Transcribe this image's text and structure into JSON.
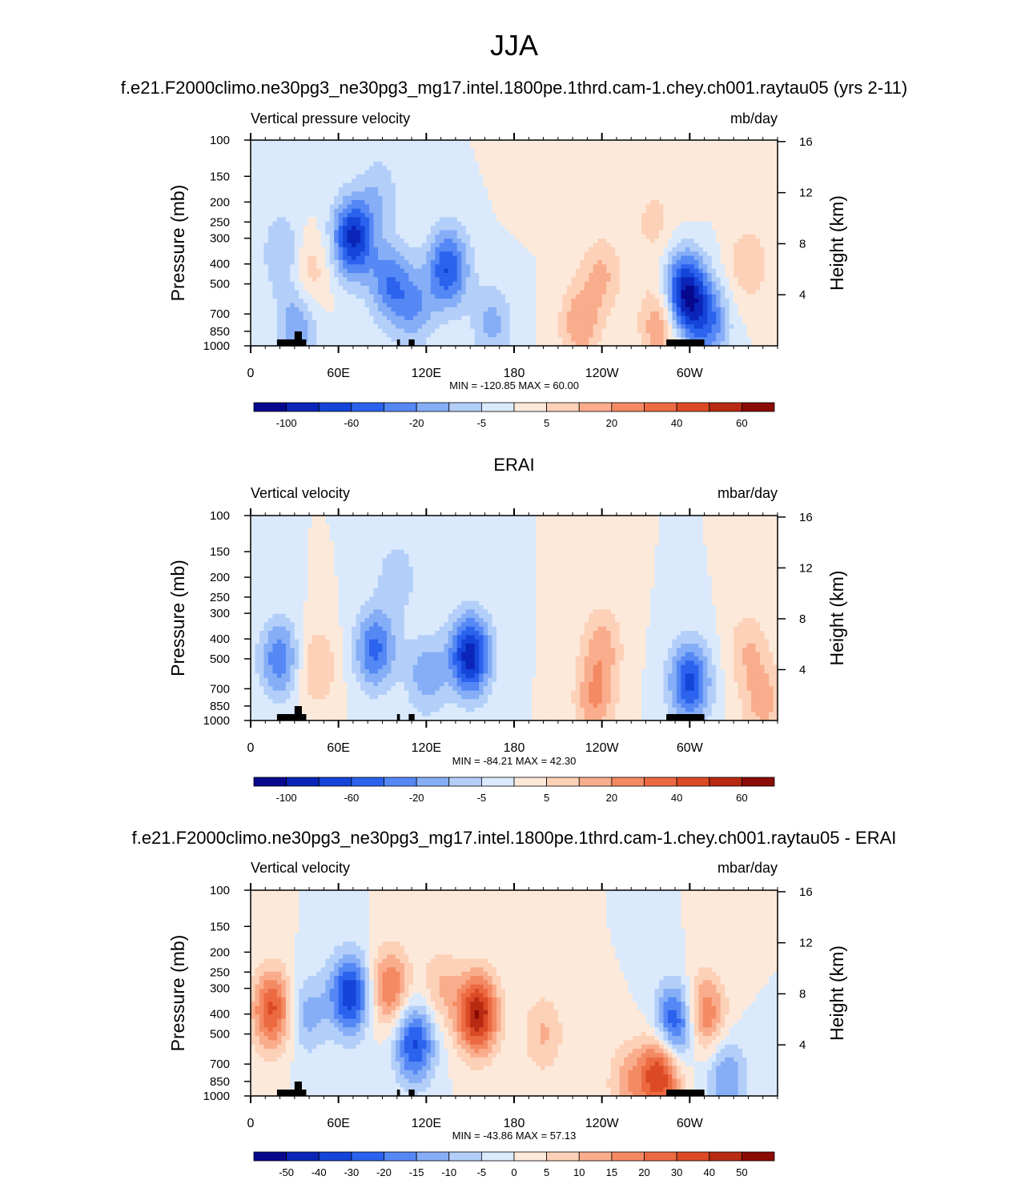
{
  "figure": {
    "title": "JJA"
  },
  "chart_data": [
    {
      "type": "heatmap",
      "panel_title": "f.e21.F2000climo.ne30pg3_ne30pg3_mg17.intel.1800pe.1thrd.cam-1.chey.ch001.raytau05 (yrs 2-11)",
      "left_label": "Vertical pressure velocity",
      "units": "mb/day",
      "xlabel": "",
      "ylabel": "Pressure (mb)",
      "y2label": "Height (km)",
      "x_ticks": [
        "0",
        "60E",
        "120E",
        "180",
        "120W",
        "60W"
      ],
      "y_ticks": [
        "100",
        "150",
        "200",
        "250",
        "300",
        "400",
        "500",
        "700",
        "850",
        "1000"
      ],
      "y2_ticks": [
        "16",
        "12",
        "8",
        "4"
      ],
      "stats": "MIN = -120.85  MAX =  60.00",
      "min": -120.85,
      "max": 60.0,
      "colorbar": {
        "labels": [
          "-100",
          "-60",
          "-20",
          "-5",
          "5",
          "20",
          "40",
          "60"
        ],
        "colors": [
          "#08088f",
          "#0a25b8",
          "#1444d8",
          "#2b63ee",
          "#5588f5",
          "#86aef7",
          "#b3cff9",
          "#daeafc",
          "#fde9da",
          "#fcd1b8",
          "#f9ad8c",
          "#f48a63",
          "#ec6a42",
          "#dc4a25",
          "#b82a12",
          "#8a0c05"
        ]
      },
      "fields": [
        {
          "lon": 40,
          "p": 450,
          "v": 28
        },
        {
          "lon": 22,
          "p": 350,
          "v": -32
        },
        {
          "lon": 32,
          "p": 780,
          "v": -45
        },
        {
          "lon": 70,
          "p": 300,
          "v": -95
        },
        {
          "lon": 95,
          "p": 500,
          "v": -55
        },
        {
          "lon": 88,
          "p": 180,
          "v": -25
        },
        {
          "lon": 112,
          "p": 650,
          "v": -40
        },
        {
          "lon": 135,
          "p": 420,
          "v": -75
        },
        {
          "lon": 165,
          "p": 780,
          "v": -35
        },
        {
          "lon": 240,
          "p": 450,
          "v": 32
        },
        {
          "lon": 225,
          "p": 780,
          "v": 42
        },
        {
          "lon": 275,
          "p": 250,
          "v": 20
        },
        {
          "lon": 297,
          "p": 560,
          "v": -110
        },
        {
          "lon": 313,
          "p": 780,
          "v": -55
        },
        {
          "lon": 340,
          "p": 400,
          "v": 28
        },
        {
          "lon": 280,
          "p": 780,
          "v": 48
        },
        {
          "lon": 190,
          "p": 130,
          "v": 5
        },
        {
          "lon": 300,
          "p": 160,
          "v": 8
        }
      ]
    },
    {
      "type": "heatmap",
      "panel_title": "ERAI",
      "left_label": "Vertical velocity",
      "units": "mbar/day",
      "xlabel": "",
      "ylabel": "Pressure (mb)",
      "y2label": "Height (km)",
      "x_ticks": [
        "0",
        "60E",
        "120E",
        "180",
        "120W",
        "60W"
      ],
      "y_ticks": [
        "100",
        "150",
        "200",
        "250",
        "300",
        "400",
        "500",
        "700",
        "850",
        "1000"
      ],
      "y2_ticks": [
        "16",
        "12",
        "8",
        "4"
      ],
      "stats": "MIN = -84.21  MAX =  42.30",
      "min": -84.21,
      "max": 42.3,
      "colorbar": {
        "labels": [
          "-100",
          "-60",
          "-20",
          "-5",
          "5",
          "20",
          "40",
          "60"
        ],
        "colors": [
          "#08088f",
          "#0a25b8",
          "#1444d8",
          "#2b63ee",
          "#5588f5",
          "#86aef7",
          "#b3cff9",
          "#daeafc",
          "#fde9da",
          "#fcd1b8",
          "#f9ad8c",
          "#f48a63",
          "#ec6a42",
          "#dc4a25",
          "#b82a12",
          "#8a0c05"
        ]
      },
      "fields": [
        {
          "lon": 20,
          "p": 500,
          "v": -40
        },
        {
          "lon": 45,
          "p": 550,
          "v": 22
        },
        {
          "lon": 85,
          "p": 450,
          "v": -45
        },
        {
          "lon": 120,
          "p": 600,
          "v": -28
        },
        {
          "lon": 150,
          "p": 480,
          "v": -70
        },
        {
          "lon": 240,
          "p": 430,
          "v": 25
        },
        {
          "lon": 235,
          "p": 800,
          "v": 30
        },
        {
          "lon": 300,
          "p": 650,
          "v": -55
        },
        {
          "lon": 340,
          "p": 450,
          "v": 20
        },
        {
          "lon": 100,
          "p": 200,
          "v": -18
        },
        {
          "lon": 350,
          "p": 820,
          "v": 25
        }
      ]
    },
    {
      "type": "heatmap",
      "panel_title": "f.e21.F2000climo.ne30pg3_ne30pg3_mg17.intel.1800pe.1thrd.cam-1.chey.ch001.raytau05 - ERAI",
      "left_label": "Vertical velocity",
      "units": "mbar/day",
      "xlabel": "",
      "ylabel": "Pressure (mb)",
      "y2label": "Height (km)",
      "x_ticks": [
        "0",
        "60E",
        "120E",
        "180",
        "120W",
        "60W"
      ],
      "y_ticks": [
        "100",
        "150",
        "200",
        "250",
        "300",
        "400",
        "500",
        "700",
        "850",
        "1000"
      ],
      "y2_ticks": [
        "16",
        "12",
        "8",
        "4"
      ],
      "stats": "MIN = -43.86  MAX =  57.13",
      "min": -43.86,
      "max": 57.13,
      "colorbar": {
        "labels": [
          "-50",
          "-40",
          "-30",
          "-20",
          "-15",
          "-10",
          "-5",
          "0",
          "5",
          "10",
          "15",
          "20",
          "30",
          "40",
          "50"
        ],
        "colors": [
          "#08088f",
          "#0a25b8",
          "#1444d8",
          "#2b63ee",
          "#5588f5",
          "#86aef7",
          "#b3cff9",
          "#daeafc",
          "#fde9da",
          "#fcd1b8",
          "#f9ad8c",
          "#f48a63",
          "#ec6a42",
          "#dc4a25",
          "#b82a12",
          "#8a0c05"
        ]
      },
      "fields": [
        {
          "lon": 15,
          "p": 380,
          "v": 38
        },
        {
          "lon": 38,
          "p": 400,
          "v": -18
        },
        {
          "lon": 68,
          "p": 320,
          "v": -42
        },
        {
          "lon": 95,
          "p": 300,
          "v": 30
        },
        {
          "lon": 112,
          "p": 550,
          "v": -38
        },
        {
          "lon": 155,
          "p": 400,
          "v": 50
        },
        {
          "lon": 130,
          "p": 300,
          "v": 15
        },
        {
          "lon": 200,
          "p": 500,
          "v": 15
        },
        {
          "lon": 280,
          "p": 780,
          "v": 45
        },
        {
          "lon": 290,
          "p": 450,
          "v": -40
        },
        {
          "lon": 310,
          "p": 400,
          "v": 30
        },
        {
          "lon": 325,
          "p": 820,
          "v": -22
        },
        {
          "lon": 258,
          "p": 870,
          "v": 18
        }
      ]
    }
  ]
}
